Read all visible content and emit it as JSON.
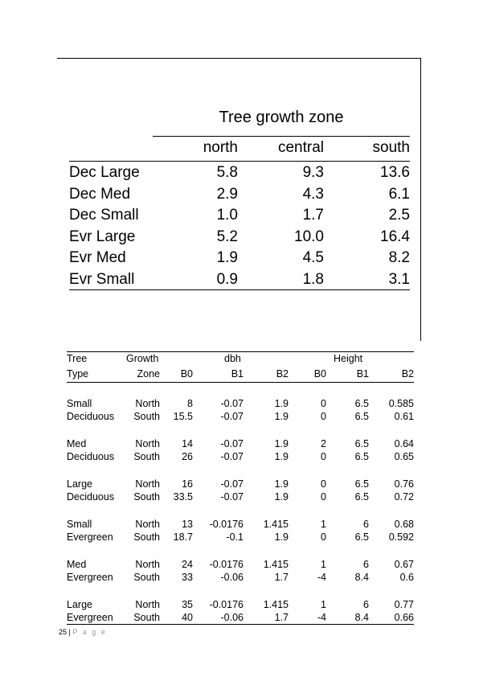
{
  "table1": {
    "spanner": "Tree growth zone",
    "columns": [
      "north",
      "central",
      "south"
    ],
    "rows": [
      {
        "label": "Dec Large",
        "north": "5.8",
        "central": "9.3",
        "south": "13.6"
      },
      {
        "label": "Dec Med",
        "north": "2.9",
        "central": "4.3",
        "south": "6.1"
      },
      {
        "label": "Dec Small",
        "north": "1.0",
        "central": "1.7",
        "south": "2.5"
      },
      {
        "label": "Evr Large",
        "north": "5.2",
        "central": "10.0",
        "south": "16.4"
      },
      {
        "label": "Evr Med",
        "north": "1.9",
        "central": "4.5",
        "south": "8.2"
      },
      {
        "label": "Evr Small",
        "north": "0.9",
        "central": "1.8",
        "south": "3.1"
      }
    ]
  },
  "table2": {
    "head1": {
      "tree": "Tree",
      "growth": "Growth",
      "dbh": "dbh",
      "height": "Height"
    },
    "head2": {
      "type": "Type",
      "zone": "Zone",
      "b0": "B0",
      "b1": "B1",
      "b2": "B2",
      "hb0": "B0",
      "hb1": "B1",
      "hb2": "B2"
    },
    "groups": [
      {
        "rows": [
          {
            "type": "Small",
            "zone": "North",
            "b0": "8",
            "b1": "-0.07",
            "b2": "1.9",
            "hb0": "0",
            "hb1": "6.5",
            "hb2": "0.585"
          },
          {
            "type": "Deciduous",
            "zone": "South",
            "b0": "15.5",
            "b1": "-0.07",
            "b2": "1.9",
            "hb0": "0",
            "hb1": "6.5",
            "hb2": "0.61"
          }
        ]
      },
      {
        "rows": [
          {
            "type": "Med",
            "zone": "North",
            "b0": "14",
            "b1": "-0.07",
            "b2": "1.9",
            "hb0": "2",
            "hb1": "6.5",
            "hb2": "0.64"
          },
          {
            "type": "Deciduous",
            "zone": "South",
            "b0": "26",
            "b1": "-0.07",
            "b2": "1.9",
            "hb0": "0",
            "hb1": "6.5",
            "hb2": "0.65"
          }
        ]
      },
      {
        "rows": [
          {
            "type": "Large",
            "zone": "North",
            "b0": "16",
            "b1": "-0.07",
            "b2": "1.9",
            "hb0": "0",
            "hb1": "6.5",
            "hb2": "0.76"
          },
          {
            "type": "Deciduous",
            "zone": "South",
            "b0": "33.5",
            "b1": "-0.07",
            "b2": "1.9",
            "hb0": "0",
            "hb1": "6.5",
            "hb2": "0.72"
          }
        ]
      },
      {
        "rows": [
          {
            "type": "Small",
            "zone": "North",
            "b0": "13",
            "b1": "-0.0176",
            "b2": "1.415",
            "hb0": "1",
            "hb1": "6",
            "hb2": "0.68"
          },
          {
            "type": "Evergreen",
            "zone": "South",
            "b0": "18.7",
            "b1": "-0.1",
            "b2": "1.9",
            "hb0": "0",
            "hb1": "6.5",
            "hb2": "0.592"
          }
        ]
      },
      {
        "rows": [
          {
            "type": "Med",
            "zone": "North",
            "b0": "24",
            "b1": "-0.0176",
            "b2": "1.415",
            "hb0": "1",
            "hb1": "6",
            "hb2": "0.67"
          },
          {
            "type": "Evergreen",
            "zone": "South",
            "b0": "33",
            "b1": "-0.06",
            "b2": "1.7",
            "hb0": "-4",
            "hb1": "8.4",
            "hb2": "0.6"
          }
        ]
      },
      {
        "rows": [
          {
            "type": "Large",
            "zone": "North",
            "b0": "35",
            "b1": "-0.0176",
            "b2": "1.415",
            "hb0": "1",
            "hb1": "6",
            "hb2": "0.77"
          },
          {
            "type": "Evergreen",
            "zone": "South",
            "b0": "40",
            "b1": "-0.06",
            "b2": "1.7",
            "hb0": "-4",
            "hb1": "8.4",
            "hb2": "0.66"
          }
        ]
      }
    ]
  },
  "footer": {
    "page_number": "25",
    "separator": " | ",
    "page_word": "P a g e"
  }
}
